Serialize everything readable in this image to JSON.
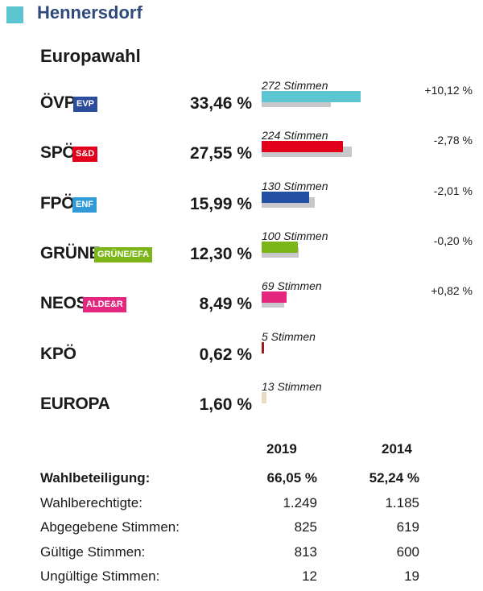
{
  "header": {
    "town": "Hennersdorf",
    "accent_color": "#5bc6d2"
  },
  "subtitle": "Europawahl",
  "parties": [
    {
      "name": "ÖVP",
      "badge": "EVP",
      "badge_color": "#2c4c9c",
      "pct": "33,46 %",
      "votes": "272 Stimmen",
      "share": 33.46,
      "prev_share": 23.34,
      "change": "+10,12 %",
      "color": "#5bc6d2"
    },
    {
      "name": "SPÖ",
      "badge": "S&D",
      "badge_color": "#e3001b",
      "pct": "27,55 %",
      "votes": "224 Stimmen",
      "share": 27.55,
      "prev_share": 30.33,
      "change": "-2,78 %",
      "color": "#e3001b"
    },
    {
      "name": "FPÖ",
      "badge": "ENF",
      "badge_color": "#2f9ad6",
      "pct": "15,99 %",
      "votes": "130 Stimmen",
      "share": 15.99,
      "prev_share": 18.0,
      "change": "-2,01 %",
      "color": "#2350a3"
    },
    {
      "name": "GRÜNE",
      "badge": "GRÜNE/EFA",
      "badge_color": "#7cb518",
      "pct": "12,30 %",
      "votes": "100 Stimmen",
      "share": 12.3,
      "prev_share": 12.5,
      "change": "-0,20 %",
      "color": "#7cb518"
    },
    {
      "name": "NEOS",
      "badge": "ALDE&R",
      "badge_color": "#e5267e",
      "pct": "8,49 %",
      "votes": "69 Stimmen",
      "share": 8.49,
      "prev_share": 7.67,
      "change": "+0,82 %",
      "color": "#e5267e"
    },
    {
      "name": "KPÖ",
      "badge": "",
      "badge_color": "",
      "pct": "0,62 %",
      "votes": "5 Stimmen",
      "share": 0.62,
      "prev_share": null,
      "change": "",
      "color": "#9b1b1f"
    },
    {
      "name": "EUROPA",
      "badge": "",
      "badge_color": "",
      "pct": "1,60 %",
      "votes": "13 Stimmen",
      "share": 1.6,
      "prev_share": null,
      "change": "",
      "color": "#e8dcc0"
    }
  ],
  "stats": {
    "year_current": "2019",
    "year_previous": "2014",
    "rows": [
      {
        "label": "Wahlbeteiligung:",
        "current": "66,05 %",
        "previous": "52,24 %",
        "bold": true
      },
      {
        "label": "Wahlberechtigte:",
        "current": "1.249",
        "previous": "1.185",
        "bold": false
      },
      {
        "label": "Abgegebene Stimmen:",
        "current": "825",
        "previous": "619",
        "bold": false
      },
      {
        "label": "Gültige Stimmen:",
        "current": "813",
        "previous": "600",
        "bold": false
      },
      {
        "label": "Ungültige Stimmen:",
        "current": "12",
        "previous": "19",
        "bold": false
      }
    ]
  },
  "chart_data": {
    "type": "bar",
    "categories": [
      "ÖVP",
      "SPÖ",
      "FPÖ",
      "GRÜNE",
      "NEOS",
      "KPÖ",
      "EUROPA"
    ],
    "series": [
      {
        "values": [
          33.46,
          27.55,
          15.99,
          12.3,
          8.49,
          0.62,
          1.6
        ]
      },
      {
        "values": [
          23.34,
          30.33,
          18.0,
          12.5,
          7.67,
          null,
          null
        ]
      }
    ],
    "data_labels": [
      "272 Stimmen",
      "224 Stimmen",
      "130 Stimmen",
      "100 Stimmen",
      "69 Stimmen",
      "5 Stimmen",
      "13 Stimmen"
    ],
    "changes": [
      "+10,12 %",
      "-2,78 %",
      "-2,01 %",
      "-0,20 %",
      "+0,82 %",
      "",
      ""
    ],
    "title": "Europawahl"
  }
}
